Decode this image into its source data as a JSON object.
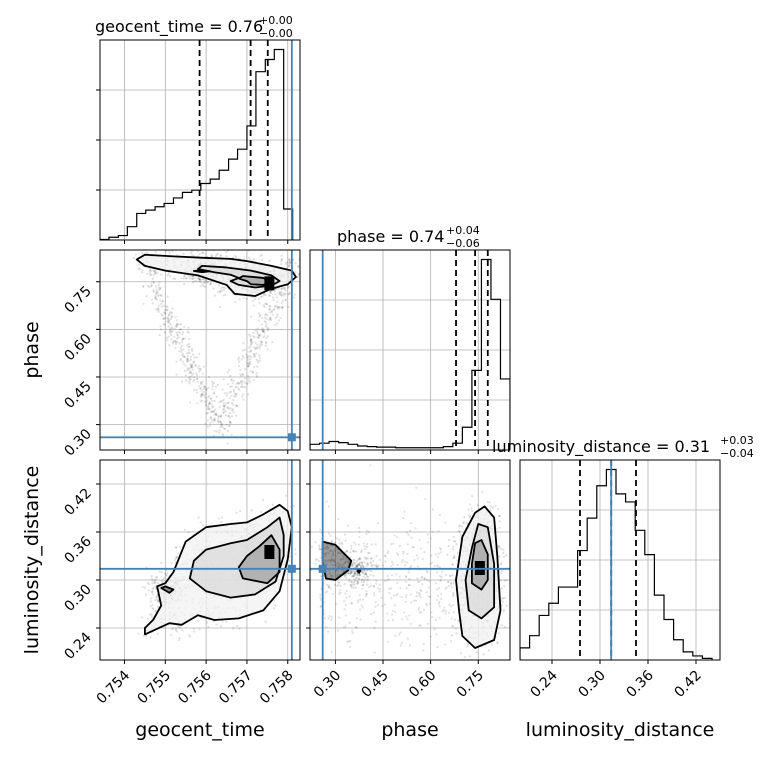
{
  "chart_data": {
    "type": "corner",
    "parameters": [
      "geocent_time",
      "phase",
      "luminosity_distance"
    ],
    "truth": {
      "geocent_time": 0.7581,
      "phase": 0.26,
      "luminosity_distance": 0.314
    },
    "truth_color": "#4682b4",
    "axes": {
      "geocent_time": {
        "range": [
          0.7534,
          0.7583
        ],
        "ticks": [
          "0.754",
          "0.755",
          "0.756",
          "0.757",
          "0.758"
        ],
        "tick_values": [
          0.754,
          0.755,
          0.756,
          0.757,
          0.758
        ]
      },
      "phase": {
        "range": [
          0.22,
          0.85
        ],
        "ticks": [
          "0.30",
          "0.45",
          "0.60",
          "0.75"
        ],
        "tick_values": [
          0.3,
          0.45,
          0.6,
          0.75
        ]
      },
      "luminosity_distance": {
        "range": [
          0.2,
          0.45
        ],
        "ticks": [
          "0.24",
          "0.30",
          "0.36",
          "0.42"
        ],
        "tick_values": [
          0.24,
          0.3,
          0.36,
          0.42
        ]
      }
    },
    "titles": [
      {
        "param": "geocent_time",
        "main": "geocent_time = 0.76",
        "sup": "+0.00",
        "sub": "−0.00"
      },
      {
        "param": "phase",
        "main": "phase = 0.74",
        "sup": "+0.04",
        "sub": "−0.06"
      },
      {
        "param": "luminosity_distance",
        "main": "luminosity_distance = 0.31",
        "sup": "+0.03",
        "sub": "−0.04"
      }
    ],
    "quantiles": {
      "geocent_time": [
        0.75584,
        0.75709,
        0.75751
      ],
      "phase": [
        0.68,
        0.74,
        0.78
      ],
      "luminosity_distance": [
        0.275,
        0.314,
        0.345
      ]
    },
    "histograms": {
      "geocent_time": {
        "edges": [
          0.7534,
          0.75362,
          0.75385,
          0.75407,
          0.7543,
          0.75452,
          0.75475,
          0.75497,
          0.7552,
          0.75542,
          0.75565,
          0.75587,
          0.7561,
          0.75632,
          0.75655,
          0.75677,
          0.757,
          0.75722,
          0.75745,
          0.75767,
          0.7579,
          0.75812
        ],
        "counts": [
          0.5,
          2.5,
          4,
          12,
          24,
          27,
          30,
          33,
          38,
          43,
          45,
          51,
          55,
          63,
          73,
          82,
          103,
          152,
          163,
          172,
          28
        ]
      },
      "phase": {
        "edges": [
          0.22,
          0.25,
          0.28,
          0.31,
          0.34,
          0.37,
          0.4,
          0.43,
          0.46,
          0.49,
          0.52,
          0.55,
          0.58,
          0.61,
          0.64,
          0.67,
          0.7,
          0.73,
          0.76,
          0.79,
          0.82,
          0.85
        ],
        "counts": [
          10,
          12,
          15,
          13,
          10,
          7,
          6,
          5,
          5,
          4,
          4,
          4,
          4,
          4,
          6,
          12,
          40,
          140,
          335,
          265,
          125
        ]
      },
      "luminosity_distance": {
        "edges": [
          0.2,
          0.212,
          0.224,
          0.236,
          0.248,
          0.26,
          0.272,
          0.284,
          0.296,
          0.308,
          0.32,
          0.332,
          0.344,
          0.356,
          0.368,
          0.38,
          0.392,
          0.404,
          0.416,
          0.428,
          0.44
        ],
        "counts": [
          15,
          30,
          55,
          70,
          90,
          90,
          135,
          175,
          215,
          235,
          205,
          195,
          160,
          130,
          80,
          50,
          25,
          10,
          5,
          2
        ]
      }
    },
    "contours": {
      "phase_vs_geocent_time": [
        [
          [
            0.7545,
            0.835
          ],
          [
            0.7552,
            0.83
          ],
          [
            0.756,
            0.825
          ],
          [
            0.7566,
            0.822
          ],
          [
            0.757,
            0.815
          ],
          [
            0.7576,
            0.8
          ],
          [
            0.7581,
            0.785
          ],
          [
            0.7582,
            0.765
          ],
          [
            0.758,
            0.742
          ],
          [
            0.7576,
            0.728
          ],
          [
            0.7572,
            0.705
          ],
          [
            0.7567,
            0.712
          ],
          [
            0.7565,
            0.74
          ],
          [
            0.7558,
            0.77
          ],
          [
            0.755,
            0.785
          ],
          [
            0.7545,
            0.8
          ],
          [
            0.7543,
            0.82
          ]
        ],
        [
          [
            0.7559,
            0.8
          ],
          [
            0.7565,
            0.795
          ],
          [
            0.7571,
            0.785
          ],
          [
            0.7576,
            0.77
          ],
          [
            0.7578,
            0.752
          ],
          [
            0.7576,
            0.738
          ],
          [
            0.7572,
            0.732
          ],
          [
            0.7568,
            0.74
          ],
          [
            0.7566,
            0.752
          ],
          [
            0.7568,
            0.762
          ],
          [
            0.7566,
            0.772
          ],
          [
            0.7562,
            0.78
          ],
          [
            0.7558,
            0.79
          ]
        ],
        [
          [
            0.7569,
            0.768
          ],
          [
            0.7574,
            0.762
          ],
          [
            0.7576,
            0.748
          ],
          [
            0.7574,
            0.74
          ],
          [
            0.7571,
            0.742
          ],
          [
            0.757,
            0.752
          ],
          [
            0.7568,
            0.76
          ]
        ],
        [
          [
            0.7557,
            0.784
          ],
          [
            0.7559,
            0.78
          ],
          [
            0.7561,
            0.783
          ],
          [
            0.7559,
            0.786
          ]
        ]
      ],
      "luminosity_distance_vs_geocent_time": [
        [
          [
            0.7545,
            0.232
          ],
          [
            0.7551,
            0.246
          ],
          [
            0.7554,
            0.244
          ],
          [
            0.7556,
            0.25
          ],
          [
            0.7558,
            0.256
          ],
          [
            0.7562,
            0.25
          ],
          [
            0.7568,
            0.252
          ],
          [
            0.7574,
            0.262
          ],
          [
            0.7578,
            0.286
          ],
          [
            0.758,
            0.326
          ],
          [
            0.7581,
            0.366
          ],
          [
            0.758,
            0.386
          ],
          [
            0.7578,
            0.394
          ],
          [
            0.7574,
            0.382
          ],
          [
            0.757,
            0.372
          ],
          [
            0.7566,
            0.37
          ],
          [
            0.756,
            0.366
          ],
          [
            0.7555,
            0.348
          ],
          [
            0.7552,
            0.31
          ],
          [
            0.755,
            0.296
          ],
          [
            0.7548,
            0.292
          ],
          [
            0.7549,
            0.268
          ],
          [
            0.7547,
            0.25
          ],
          [
            0.7545,
            0.24
          ]
        ],
        [
          [
            0.7556,
            0.302
          ],
          [
            0.756,
            0.286
          ],
          [
            0.7566,
            0.278
          ],
          [
            0.7572,
            0.282
          ],
          [
            0.7577,
            0.298
          ],
          [
            0.7579,
            0.33
          ],
          [
            0.7579,
            0.356
          ],
          [
            0.7578,
            0.378
          ],
          [
            0.7575,
            0.366
          ],
          [
            0.757,
            0.35
          ],
          [
            0.7566,
            0.346
          ],
          [
            0.756,
            0.338
          ],
          [
            0.7557,
            0.324
          ]
        ],
        [
          [
            0.7569,
            0.302
          ],
          [
            0.7575,
            0.296
          ],
          [
            0.7578,
            0.31
          ],
          [
            0.7578,
            0.338
          ],
          [
            0.7576,
            0.356
          ],
          [
            0.7573,
            0.342
          ],
          [
            0.757,
            0.33
          ],
          [
            0.7568,
            0.316
          ]
        ],
        [
          [
            0.7549,
            0.29
          ],
          [
            0.7551,
            0.284
          ],
          [
            0.7552,
            0.288
          ],
          [
            0.755,
            0.292
          ]
        ]
      ],
      "luminosity_distance_vs_phase": [
        [
          [
            0.7,
            0.23
          ],
          [
            0.74,
            0.215
          ],
          [
            0.8,
            0.225
          ],
          [
            0.82,
            0.262
          ],
          [
            0.81,
            0.33
          ],
          [
            0.8,
            0.378
          ],
          [
            0.77,
            0.392
          ],
          [
            0.74,
            0.384
          ],
          [
            0.7,
            0.354
          ],
          [
            0.68,
            0.3
          ],
          [
            0.69,
            0.26
          ]
        ],
        [
          [
            0.72,
            0.262
          ],
          [
            0.76,
            0.252
          ],
          [
            0.8,
            0.266
          ],
          [
            0.8,
            0.32
          ],
          [
            0.78,
            0.366
          ],
          [
            0.75,
            0.37
          ],
          [
            0.73,
            0.34
          ],
          [
            0.71,
            0.3
          ]
        ],
        [
          [
            0.73,
            0.296
          ],
          [
            0.76,
            0.288
          ],
          [
            0.78,
            0.3
          ],
          [
            0.78,
            0.332
          ],
          [
            0.76,
            0.35
          ],
          [
            0.74,
            0.346
          ],
          [
            0.73,
            0.32
          ]
        ],
        [
          [
            0.26,
            0.348
          ],
          [
            0.3,
            0.344
          ],
          [
            0.35,
            0.324
          ],
          [
            0.34,
            0.312
          ],
          [
            0.3,
            0.3
          ],
          [
            0.27,
            0.302
          ],
          [
            0.26,
            0.322
          ]
        ],
        [
          [
            0.37,
            0.311
          ],
          [
            0.375,
            0.309
          ],
          [
            0.378,
            0.312
          ],
          [
            0.372,
            0.313
          ]
        ]
      ]
    }
  }
}
